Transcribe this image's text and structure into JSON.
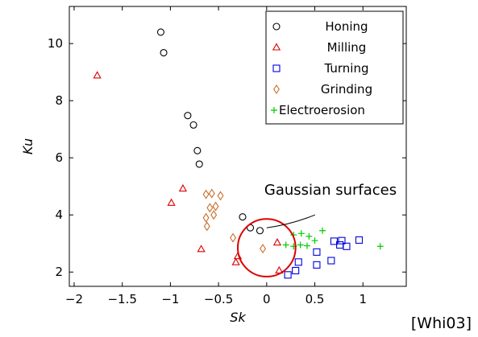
{
  "chart_data": {
    "type": "scatter",
    "title": "",
    "xlabel": "Sk",
    "ylabel": "Ku",
    "xlim": [
      -2.05,
      1.45
    ],
    "ylim": [
      1.5,
      11.3
    ],
    "xticks": [
      -2,
      -1.5,
      -1,
      -0.5,
      0,
      0.5,
      1
    ],
    "xtick_labels": [
      "−2",
      "−1.5",
      "−1",
      "−0.5",
      "0",
      "0.5",
      "1"
    ],
    "yticks": [
      2,
      4,
      6,
      8,
      10
    ],
    "ytick_labels": [
      "2",
      "4",
      "6",
      "8",
      "10"
    ],
    "grid": false,
    "legend_position": "top-right",
    "series": [
      {
        "name": "Honing",
        "marker": "circle",
        "color": "#000000",
        "points": [
          [
            -1.1,
            10.4
          ],
          [
            -1.07,
            9.68
          ],
          [
            -0.82,
            7.48
          ],
          [
            -0.76,
            7.15
          ],
          [
            -0.72,
            6.25
          ],
          [
            -0.7,
            5.78
          ],
          [
            -0.25,
            3.93
          ],
          [
            -0.17,
            3.55
          ],
          [
            -0.07,
            3.45
          ]
        ]
      },
      {
        "name": "Milling",
        "marker": "triangle",
        "color": "#dd0000",
        "points": [
          [
            -1.76,
            8.88
          ],
          [
            -0.99,
            4.42
          ],
          [
            -0.87,
            4.92
          ],
          [
            -0.68,
            2.8
          ],
          [
            -0.32,
            2.34
          ],
          [
            -0.3,
            2.55
          ],
          [
            0.11,
            3.03
          ],
          [
            0.13,
            2.05
          ]
        ]
      },
      {
        "name": "Turning",
        "marker": "square",
        "color": "#0000dd",
        "points": [
          [
            0.22,
            1.9
          ],
          [
            0.3,
            2.05
          ],
          [
            0.33,
            2.35
          ],
          [
            0.52,
            2.25
          ],
          [
            0.52,
            2.7
          ],
          [
            0.67,
            2.4
          ],
          [
            0.7,
            3.08
          ],
          [
            0.76,
            2.95
          ],
          [
            0.78,
            3.1
          ],
          [
            0.83,
            2.9
          ],
          [
            0.96,
            3.12
          ]
        ]
      },
      {
        "name": "Grinding",
        "marker": "diamond",
        "color": "#c86e28",
        "points": [
          [
            -0.63,
            4.72
          ],
          [
            -0.57,
            4.75
          ],
          [
            -0.48,
            4.67
          ],
          [
            -0.59,
            4.25
          ],
          [
            -0.53,
            4.3
          ],
          [
            -0.63,
            3.9
          ],
          [
            -0.55,
            4.0
          ],
          [
            -0.62,
            3.6
          ],
          [
            -0.35,
            3.2
          ],
          [
            -0.04,
            2.82
          ]
        ]
      },
      {
        "name": "Electroerosion",
        "marker": "plus",
        "color": "#00cc00",
        "points": [
          [
            0.2,
            2.95
          ],
          [
            0.28,
            2.9
          ],
          [
            0.35,
            2.95
          ],
          [
            0.28,
            3.3
          ],
          [
            0.36,
            3.35
          ],
          [
            0.44,
            3.25
          ],
          [
            0.5,
            3.1
          ],
          [
            0.58,
            3.45
          ],
          [
            0.42,
            2.92
          ],
          [
            1.18,
            2.9
          ]
        ]
      }
    ],
    "annotations": [
      {
        "text": "Gaussian surfaces",
        "shape": "circle",
        "center": [
          0.0,
          2.85
        ],
        "radius_x": 0.3,
        "color": "#dd0000",
        "arrow_to": [
          0.0,
          3.55
        ]
      }
    ]
  },
  "citation": "[Whi03]"
}
